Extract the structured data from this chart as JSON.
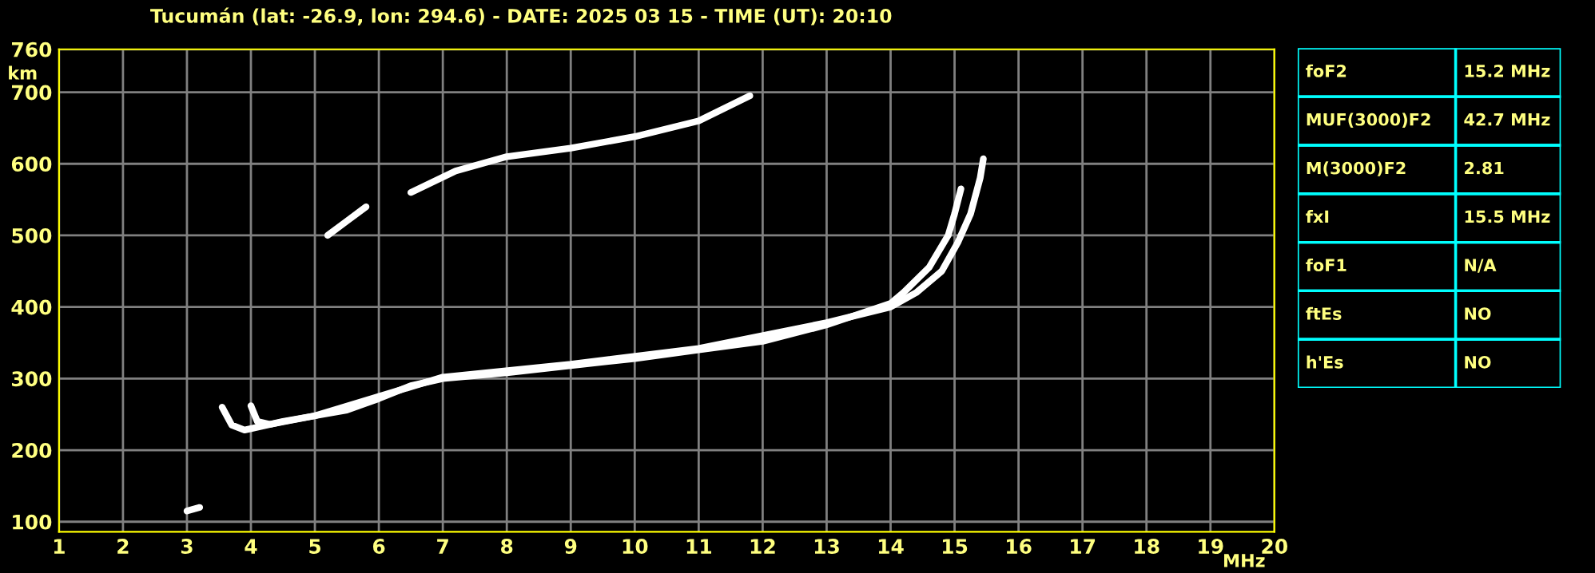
{
  "chart_data": [
    {
      "type": "line",
      "title": "Tucumán (lat: -26.9, lon: 294.6) - DATE: 2025 03 15 - TIME (UT): 20:10",
      "xlabel": "MHz",
      "ylabel": "km",
      "xlim": [
        1,
        20
      ],
      "xticks": [
        1,
        2,
        3,
        4,
        5,
        6,
        7,
        8,
        9,
        10,
        11,
        12,
        13,
        14,
        15,
        16,
        17,
        18,
        19,
        20
      ],
      "ylim": [
        86,
        760
      ],
      "yticks": [
        100,
        200,
        300,
        400,
        500,
        600,
        700,
        760
      ],
      "grid": true,
      "legend": false,
      "marker": "none",
      "line_style": "solid",
      "series": [
        {
          "color": "#ffffff",
          "x": [
            3.55,
            3.7,
            3.9,
            4.0,
            4.5,
            5.0,
            5.5,
            6.0,
            6.5,
            7.0,
            8.0,
            9.0,
            10.0,
            11.0,
            12.0,
            13.0,
            13.5,
            14.0,
            14.2,
            14.6,
            14.9,
            15.0,
            15.1
          ],
          "values": [
            260,
            235,
            228,
            230,
            240,
            248,
            256,
            272,
            290,
            300,
            308,
            318,
            328,
            340,
            352,
            375,
            390,
            405,
            420,
            455,
            500,
            530,
            565
          ]
        },
        {
          "color": "#ffffff",
          "x": [
            4.0,
            4.1,
            4.3,
            5.0,
            6.0,
            7.0,
            9.0,
            11.0,
            13.0,
            14.0,
            14.4,
            14.8,
            15.05,
            15.25,
            15.4,
            15.45
          ],
          "values": [
            262,
            240,
            236,
            248,
            275,
            302,
            320,
            342,
            378,
            400,
            420,
            450,
            490,
            530,
            580,
            607
          ]
        },
        {
          "color": "#ffffff",
          "x": [
            5.2,
            5.5,
            5.8
          ],
          "values": [
            500,
            520,
            540
          ]
        },
        {
          "color": "#ffffff",
          "x": [
            6.5,
            7.2,
            8.0,
            9.0,
            10.0,
            11.0,
            11.8
          ],
          "values": [
            560,
            590,
            610,
            622,
            638,
            660,
            695
          ]
        },
        {
          "color": "#ffffff",
          "x": [
            3.0,
            3.2
          ],
          "values": [
            115,
            120
          ]
        }
      ]
    },
    {
      "type": "other",
      "annotations": [
        "foF2",
        "15.2 MHz",
        "MUF(3000)F2",
        "42.7 MHz",
        "M(3000)F2",
        "2.81",
        "fxI",
        "15.5 MHz",
        "foF1",
        "N/A",
        "ftEs",
        "NO",
        "h'Es",
        "NO"
      ]
    }
  ]
}
